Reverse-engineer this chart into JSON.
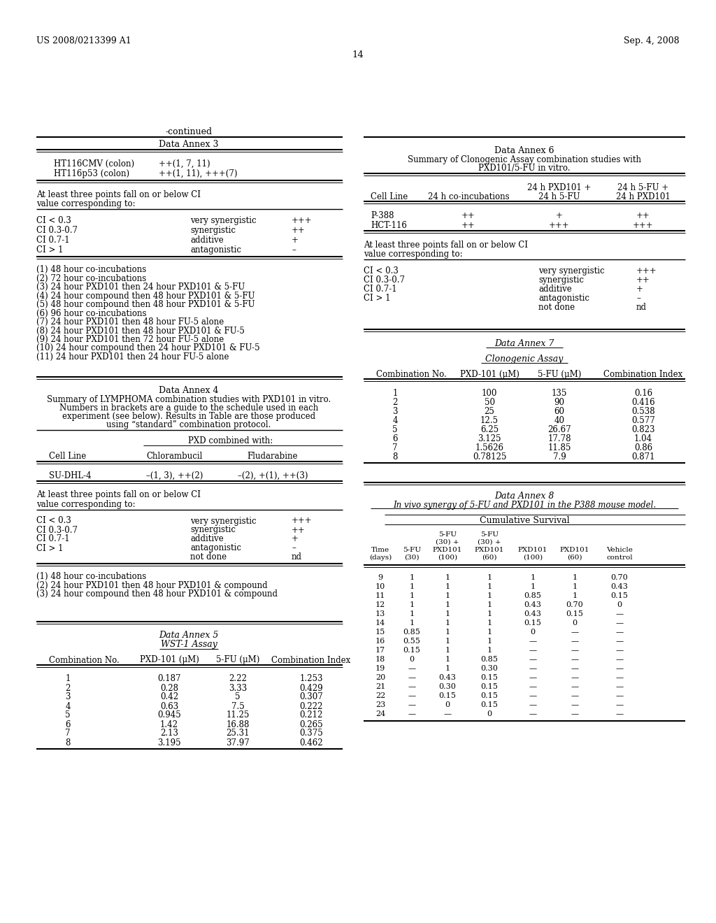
{
  "bg_color": "#ffffff",
  "text_color": "#000000",
  "header_left": "US 2008/0213399 A1",
  "header_right": "Sep. 4, 2008",
  "page_num": "14",
  "left_col": {
    "annex3": {
      "title": "Data Annex 3",
      "rows": [
        [
          "HT116CMV (colon)",
          "++(1, 7, 11)"
        ],
        [
          "HT116p53 (colon)",
          "++(1, 11), +++(7)"
        ]
      ]
    },
    "footnote3a_line1": "At least three points fall on or below CI",
    "footnote3a_line2": "value corresponding to:",
    "ci_table3": [
      [
        "CI < 0.3",
        "very synergistic",
        "+++"
      ],
      [
        "CI 0.3-0.7",
        "synergistic",
        "++"
      ],
      [
        "CI 0.7-1",
        "additive",
        "+"
      ],
      [
        "CI > 1",
        "antagonistic",
        "–"
      ]
    ],
    "notes3": [
      "(1) 48 hour co-incubations",
      "(2) 72 hour co-incubations",
      "(3) 24 hour PXD101 then 24 hour PXD101 & 5-FU",
      "(4) 24 hour compound then 48 hour PXD101 & 5-FU",
      "(5) 48 hour compound then 48 hour PXD101 & 5-FU",
      "(6) 96 hour co-incubations",
      "(7) 24 hour PXD101 then 48 hour FU-5 alone",
      "(8) 24 hour PXD101 then 48 hour PXD101 & FU-5",
      "(9) 24 hour PXD101 then 72 hour FU-5 alone",
      "(10) 24 hour compound then 24 hour PXD101 & FU-5",
      "(11) 24 hour PXD101 then 24 hour FU-5 alone"
    ],
    "annex4": {
      "title": "Data Annex 4",
      "subtitle_lines": [
        "Summary of LYMPHOMA combination studies with PXD101 in vitro.",
        "Numbers in brackets are a guide to the schedule used in each",
        "experiment (see below). Results in Table are those produced",
        "using “standard” combination protocol."
      ],
      "col_header": "PXD combined with:",
      "col1": "Cell Line",
      "col2": "Chlorambucil",
      "col3": "Fludarabine",
      "data_rows": [
        [
          "SU-DHL-4",
          "–(1, 3), ++(2)",
          "–(2), +(1), ++(3)"
        ]
      ]
    },
    "footnote4a_line1": "At least three points fall on or below CI",
    "footnote4a_line2": "value corresponding to:",
    "ci_table4": [
      [
        "CI < 0.3",
        "very synergistic",
        "+++"
      ],
      [
        "CI 0.3-0.7",
        "synergistic",
        "++"
      ],
      [
        "CI 0.7-1",
        "additive",
        "+"
      ],
      [
        "CI > 1",
        "antagonistic",
        "–"
      ],
      [
        "",
        "not done",
        "nd"
      ]
    ],
    "notes4": [
      "(1) 48 hour co-incubations",
      "(2) 24 hour PXD101 then 48 hour PXD101 & compound",
      "(3) 24 hour compound then 48 hour PXD101 & compound"
    ],
    "annex5": {
      "title": "Data Annex 5",
      "subtitle": "WST-1 Assay",
      "col1": "Combination No.",
      "col2": "PXD-101 (μM)",
      "col3": "5-FU (μM)",
      "col4": "Combination Index",
      "data_rows": [
        [
          "1",
          "0.187",
          "2.22",
          "1.253"
        ],
        [
          "2",
          "0.28",
          "3.33",
          "0.429"
        ],
        [
          "3",
          "0.42",
          "5",
          "0.307"
        ],
        [
          "4",
          "0.63",
          "7.5",
          "0.222"
        ],
        [
          "5",
          "0.945",
          "11.25",
          "0.212"
        ],
        [
          "6",
          "1.42",
          "16.88",
          "0.265"
        ],
        [
          "7",
          "2.13",
          "25.31",
          "0.375"
        ],
        [
          "8",
          "3.195",
          "37.97",
          "0.462"
        ]
      ]
    }
  },
  "right_col": {
    "annex6": {
      "title": "Data Annex 6",
      "subtitle_lines": [
        "Summary of Clonogenic Assay combination studies with",
        "PXD101/5-FU in vitro."
      ],
      "header_row1_col3": "24 h PXD101 +",
      "header_row1_col4": "24 h 5-FU +",
      "header_row2_col1": "Cell Line",
      "header_row2_col2": "24 h co-incubations",
      "header_row2_col3": "24 h 5-FU",
      "header_row2_col4": "24 h PXD101",
      "data_rows": [
        [
          "P-388",
          "++",
          "+",
          "++"
        ],
        [
          "HCT-116",
          "++",
          "+++",
          "+++"
        ]
      ]
    },
    "footnote6a_line1": "At least three points fall on or below CI",
    "footnote6a_line2": "value corresponding to:",
    "ci_table6": [
      [
        "CI < 0.3",
        "very synergistic",
        "+++"
      ],
      [
        "CI 0.3-0.7",
        "synergistic",
        "++"
      ],
      [
        "CI 0.7-1",
        "additive",
        "+"
      ],
      [
        "CI > 1",
        "antagonistic",
        "–"
      ],
      [
        "",
        "not done",
        "nd"
      ]
    ],
    "annex7": {
      "title": "Data Annex 7",
      "subtitle": "Clonogenic Assay",
      "col1": "Combination No.",
      "col2": "PXD-101 (μM)",
      "col3": "5-FU (μM)",
      "col4": "Combination Index",
      "data_rows": [
        [
          "1",
          "100",
          "135",
          "0.16"
        ],
        [
          "2",
          "50",
          "90",
          "0.416"
        ],
        [
          "3",
          "25",
          "60",
          "0.538"
        ],
        [
          "4",
          "12.5",
          "40",
          "0.577"
        ],
        [
          "5",
          "6.25",
          "26.67",
          "0.823"
        ],
        [
          "6",
          "3.125",
          "17.78",
          "1.04"
        ],
        [
          "7",
          "1.5626",
          "11.85",
          "0.86"
        ],
        [
          "8",
          "0.78125",
          "7.9",
          "0.871"
        ]
      ]
    },
    "annex8": {
      "title": "Data Annex 8",
      "subtitle": "In vivo synergy of 5-FU and PXD101 in the P388 mouse model.",
      "section_title": "Cumulative Survival",
      "col_headers": [
        "Time\n(days)",
        "5-FU\n(30)",
        "5-FU\n(30) +\nPXD101\n(100)",
        "5-FU\n(30) +\nPXD101\n(60)",
        "PXD101\n(100)",
        "PXD101\n(60)",
        "Vehicle\ncontrol"
      ],
      "data_rows": [
        [
          "9",
          "1",
          "1",
          "1",
          "1",
          "1",
          "0.70"
        ],
        [
          "10",
          "1",
          "1",
          "1",
          "1",
          "1",
          "0.43"
        ],
        [
          "11",
          "1",
          "1",
          "1",
          "0.85",
          "1",
          "0.15"
        ],
        [
          "12",
          "1",
          "1",
          "1",
          "0.43",
          "0.70",
          "0"
        ],
        [
          "13",
          "1",
          "1",
          "1",
          "0.43",
          "0.15",
          "—"
        ],
        [
          "14",
          "1",
          "1",
          "1",
          "0.15",
          "0",
          "—"
        ],
        [
          "15",
          "0.85",
          "1",
          "1",
          "0",
          "—",
          "—"
        ],
        [
          "16",
          "0.55",
          "1",
          "1",
          "—",
          "—",
          "—"
        ],
        [
          "17",
          "0.15",
          "1",
          "1",
          "—",
          "—",
          "—"
        ],
        [
          "18",
          "0",
          "1",
          "0.85",
          "—",
          "—",
          "—"
        ],
        [
          "19",
          "—",
          "1",
          "0.30",
          "—",
          "—",
          "—"
        ],
        [
          "20",
          "—",
          "0.43",
          "0.15",
          "—",
          "—",
          "—"
        ],
        [
          "21",
          "—",
          "0.30",
          "0.15",
          "—",
          "—",
          "—"
        ],
        [
          "22",
          "—",
          "0.15",
          "0.15",
          "—",
          "—",
          "—"
        ],
        [
          "23",
          "—",
          "0",
          "0.15",
          "—",
          "—",
          "—"
        ],
        [
          "24",
          "—",
          "—",
          "0",
          "—",
          "—",
          "—"
        ]
      ]
    }
  }
}
